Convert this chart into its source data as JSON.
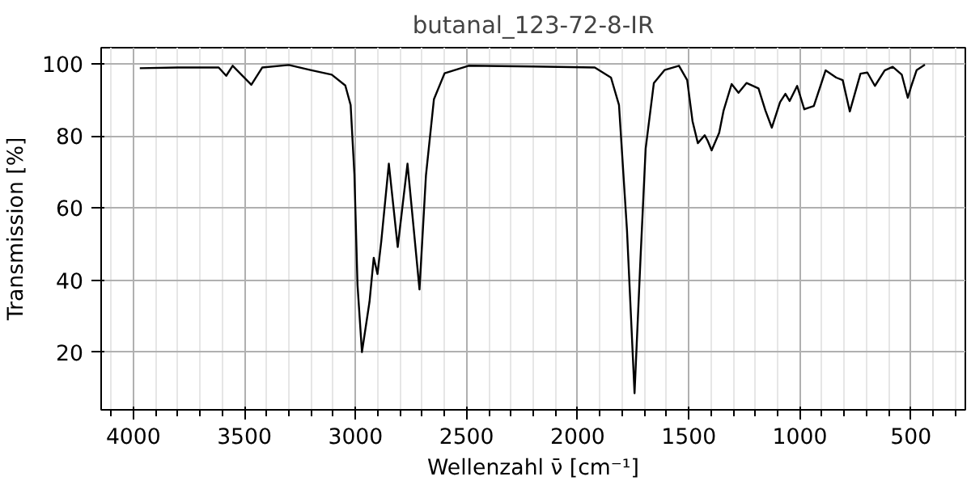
{
  "chart_data": {
    "type": "line",
    "title": "butanal_123-72-8-IR",
    "xlabel": "Wellenzahl ν̄ [cm⁻¹]",
    "ylabel": "Transmission [%]",
    "x": [
      3971,
      3800,
      3616,
      3582,
      3553,
      3469,
      3420,
      3300,
      3203,
      3107,
      3046,
      3022,
      3005,
      2991,
      2971,
      2937,
      2918,
      2901,
      2884,
      2850,
      2810,
      2766,
      2712,
      2683,
      2647,
      2599,
      2491,
      2200,
      1923,
      1850,
      1814,
      1778,
      1744,
      1717,
      1694,
      1657,
      1609,
      1544,
      1507,
      1483,
      1459,
      1428,
      1415,
      1397,
      1363,
      1343,
      1307,
      1276,
      1240,
      1186,
      1155,
      1126,
      1089,
      1065,
      1046,
      1012,
      980,
      937,
      884,
      836,
      807,
      775,
      727,
      696,
      662,
      618,
      582,
      541,
      514,
      498,
      474,
      437
    ],
    "series": [
      {
        "color": "#000000",
        "values": [
          98.8,
          99,
          99,
          96.7,
          99.5,
          94.2,
          99,
          99.7,
          98.3,
          97,
          94,
          88.6,
          69.4,
          38.6,
          20,
          34,
          46.2,
          41.7,
          50.8,
          72.3,
          49.2,
          72.3,
          37.4,
          69,
          90.2,
          97.4,
          99.5,
          99.3,
          99,
          96.2,
          88.6,
          53.8,
          8.6,
          46.2,
          76.5,
          94.7,
          98.3,
          99.5,
          95.5,
          84.1,
          78,
          80.2,
          78.7,
          76,
          80.9,
          87.1,
          94.4,
          92,
          94.7,
          93.2,
          87.1,
          82.3,
          89.4,
          91.7,
          89.7,
          93.9,
          87.4,
          88.3,
          98.2,
          96.2,
          95.5,
          86.8,
          97.3,
          97.6,
          93.9,
          98.2,
          99.2,
          97,
          90.6,
          93.9,
          98.3,
          99.8
        ]
      }
    ],
    "xlim": [
      4145,
      255
    ],
    "ylim": [
      4,
      104.5
    ],
    "xticks": [
      4000,
      3500,
      3000,
      2500,
      2000,
      1500,
      1000,
      500
    ],
    "yticks": [
      20,
      40,
      60,
      80,
      100
    ],
    "grid": true,
    "line_style": "solid",
    "marker": "none"
  }
}
